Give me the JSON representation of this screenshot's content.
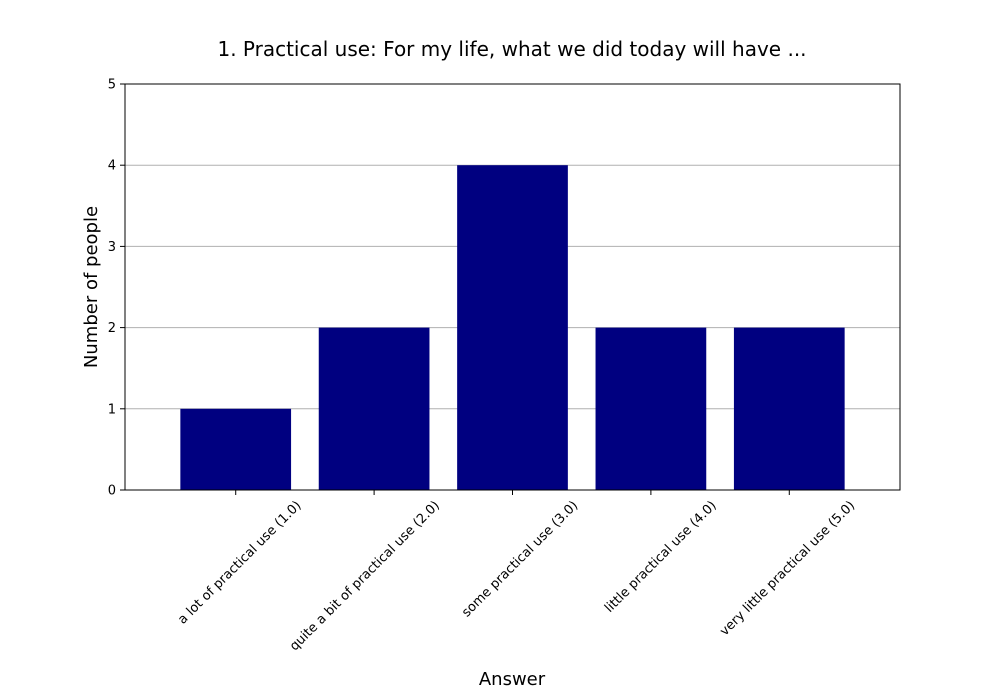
{
  "chart_data": {
    "type": "bar",
    "title": "1. Practical use: For my life, what we did today will have ...",
    "xlabel": "Answer",
    "ylabel": "Number of people",
    "categories": [
      "a lot of practical use (1.0)",
      "quite a bit of practical use (2.0)",
      "some practical use (3.0)",
      "little practical use (4.0)",
      "very little practical use (5.0)"
    ],
    "values": [
      1,
      2,
      4,
      2,
      2
    ],
    "ylim": [
      0,
      5
    ],
    "yticks": [
      0,
      1,
      2,
      3,
      4,
      5
    ],
    "grid": "horizontal",
    "bar_color": "#000080",
    "grid_color": "#b0b0b0",
    "legend": "none"
  }
}
